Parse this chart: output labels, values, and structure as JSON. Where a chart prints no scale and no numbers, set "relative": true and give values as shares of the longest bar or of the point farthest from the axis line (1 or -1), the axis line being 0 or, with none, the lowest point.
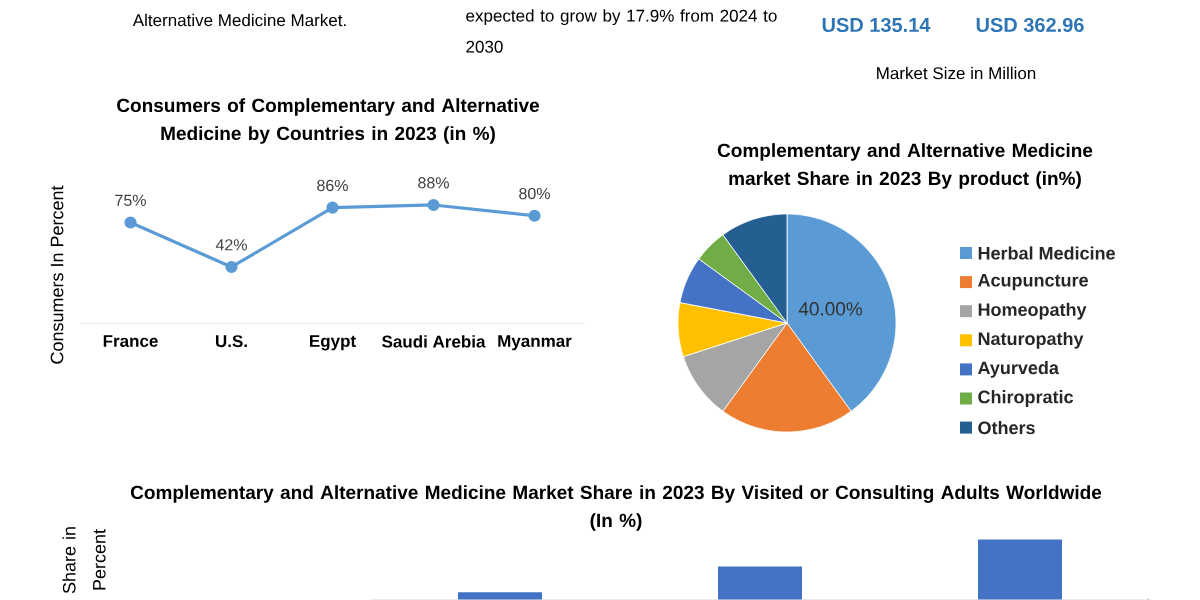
{
  "chart_data": [
    {
      "type": "other",
      "annotations": [
        "Alternative Medicine Market.",
        "expected to grow by 17.9% from 2024 to 2030",
        "USD 135.14",
        "USD 362.96",
        "Market Size in Million"
      ]
    },
    {
      "type": "line",
      "title": "Consumers of Complementary and Alternative Medicine by Countries in 2023  (in %)",
      "ylabel": "Consumers In Percent",
      "categories": [
        "France",
        "U.S.",
        "Egypt",
        "Saudi Arebia",
        "Myanmar"
      ],
      "values": [
        75,
        42,
        86,
        88,
        80
      ],
      "value_labels": [
        "75%",
        "42%",
        "86%",
        "88%",
        "80%"
      ],
      "color": "#5b9bd5",
      "marker": "circle"
    },
    {
      "type": "pie",
      "title": "Complementary and Alternative Medicine market Share in 2023  By product (in%)",
      "categories": [
        "Herbal Medicine",
        "Acupuncture",
        "Homeopathy",
        "Naturopathy",
        "Ayurveda",
        "Chiropratic",
        "Others"
      ],
      "values": [
        40,
        20,
        10,
        8,
        7,
        5,
        10
      ],
      "value_labels": [
        "40.00%",
        null,
        null,
        null,
        null,
        null,
        null
      ],
      "colors": [
        "#5b9bd5",
        "#ed7d31",
        "#a5a5a5",
        "#ffc000",
        "#4472c4",
        "#70ad47",
        "#255e91"
      ],
      "legend": "right"
    },
    {
      "type": "bar",
      "title": "Complementary and Alternative Medicine Market Share in 2023 By Visited or Consulting Adults Worldwide (In %)",
      "ylabel": "Share in Percent",
      "categories": [
        null,
        null,
        null
      ],
      "values": [
        0.12,
        0.55,
        1
      ],
      "color": "#4472c4",
      "relative": true
    }
  ]
}
